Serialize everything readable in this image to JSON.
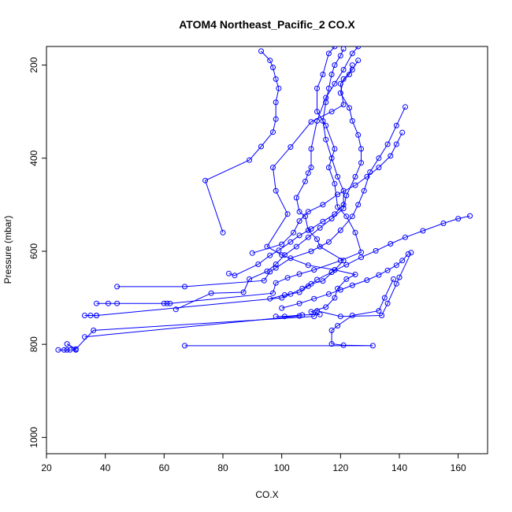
{
  "chart_data": {
    "type": "scatter",
    "title": "ATOM4 Northeast_Pacific_2 CO.X",
    "xlabel": "CO.X",
    "ylabel": "Pressure (mbar)",
    "xlim": [
      20,
      170
    ],
    "ylim": [
      160,
      1035
    ],
    "y_reversed": true,
    "x_ticks": [
      20,
      40,
      60,
      80,
      100,
      120,
      140,
      160
    ],
    "y_ticks": [
      200,
      400,
      600,
      800,
      1000
    ],
    "colors": {
      "series": "#0000ff",
      "axes": "#000000",
      "background": "#ffffff"
    },
    "legend": "none",
    "grid": false,
    "series": [
      {
        "style": "line+points",
        "points": [
          [
            24,
            812
          ],
          [
            26,
            812
          ],
          [
            27,
            812
          ],
          [
            28,
            812
          ],
          [
            30,
            812
          ],
          [
            27,
            799
          ],
          [
            30,
            810
          ],
          [
            36,
            770
          ],
          [
            111,
            740
          ],
          [
            112,
            728
          ],
          [
            120,
            740
          ],
          [
            134,
            738
          ],
          [
            136,
            712
          ],
          [
            139,
            670
          ],
          [
            140,
            656
          ],
          [
            144,
            603
          ]
        ]
      },
      {
        "style": "line+points",
        "points": [
          [
            67,
            803
          ],
          [
            131,
            803
          ],
          [
            121,
            802
          ],
          [
            117,
            799
          ],
          [
            117,
            770
          ],
          [
            119,
            760
          ],
          [
            124,
            738
          ],
          [
            133,
            728
          ],
          [
            135,
            700
          ],
          [
            138,
            660
          ]
        ]
      },
      {
        "style": "line+points",
        "points": [
          [
            33,
            784
          ],
          [
            106,
            739
          ],
          [
            98,
            740
          ],
          [
            101,
            740
          ],
          [
            107,
            737
          ],
          [
            113,
            736
          ],
          [
            110,
            730
          ],
          [
            115,
            720
          ],
          [
            118,
            700
          ],
          [
            119,
            680
          ],
          [
            122,
            660
          ],
          [
            125,
            650
          ],
          [
            118,
            640
          ],
          [
            109,
            630
          ],
          [
            100,
            608
          ],
          [
            95,
            590
          ],
          [
            102,
            520
          ],
          [
            98,
            470
          ],
          [
            97,
            420
          ],
          [
            103,
            376
          ],
          [
            110,
            322
          ],
          [
            117,
            300
          ],
          [
            121,
            285
          ],
          [
            120,
            240
          ],
          [
            123,
            220
          ],
          [
            124,
            200
          ]
        ]
      },
      {
        "style": "line+points",
        "points": [
          [
            33,
            738
          ],
          [
            35,
            738
          ],
          [
            37,
            738
          ],
          [
            37,
            738
          ],
          [
            100,
            700
          ],
          [
            103,
            692
          ],
          [
            107,
            680
          ],
          [
            110,
            670
          ],
          [
            114,
            664
          ],
          [
            118,
            640
          ],
          [
            121,
            620
          ],
          [
            113,
            590
          ],
          [
            112,
            574
          ],
          [
            109,
            555
          ],
          [
            108,
            525
          ],
          [
            106,
            515
          ],
          [
            105,
            485
          ],
          [
            108,
            450
          ],
          [
            109,
            432
          ],
          [
            110,
            420
          ],
          [
            110,
            380
          ],
          [
            112,
            320
          ],
          [
            115,
            270
          ],
          [
            118,
            240
          ],
          [
            121,
            210
          ],
          [
            124,
            175
          ],
          [
            126,
            160
          ]
        ]
      },
      {
        "style": "line+points",
        "points": [
          [
            37,
            712
          ],
          [
            41,
            712
          ],
          [
            44,
            712
          ],
          [
            60,
            712
          ],
          [
            61,
            712
          ],
          [
            62,
            712
          ],
          [
            97,
            690
          ],
          [
            98,
            668
          ],
          [
            102,
            657
          ],
          [
            106,
            649
          ],
          [
            111,
            640
          ],
          [
            120,
            620
          ],
          [
            127,
            602
          ],
          [
            125,
            560
          ],
          [
            122,
            525
          ],
          [
            119,
            505
          ],
          [
            118,
            455
          ],
          [
            116,
            420
          ],
          [
            118,
            380
          ],
          [
            115,
            330
          ],
          [
            112,
            300
          ],
          [
            112,
            250
          ],
          [
            114,
            220
          ],
          [
            116,
            175
          ],
          [
            118,
            160
          ]
        ]
      },
      {
        "style": "line+points",
        "points": [
          [
            44,
            676
          ],
          [
            67,
            676
          ],
          [
            94,
            663
          ],
          [
            96,
            644
          ],
          [
            98,
            636
          ],
          [
            103,
            615
          ],
          [
            110,
            600
          ],
          [
            116,
            580
          ],
          [
            120,
            555
          ],
          [
            124,
            525
          ],
          [
            126,
            500
          ],
          [
            128,
            470
          ],
          [
            130,
            430
          ],
          [
            133,
            400
          ],
          [
            136,
            370
          ],
          [
            139,
            330
          ],
          [
            142,
            290
          ]
        ]
      },
      {
        "style": "line+points",
        "points": [
          [
            64,
            725
          ],
          [
            76,
            690
          ],
          [
            87,
            688
          ],
          [
            89,
            660
          ],
          [
            95,
            643
          ],
          [
            98,
            628
          ],
          [
            101,
            608
          ],
          [
            105,
            590
          ],
          [
            109,
            570
          ],
          [
            113,
            550
          ],
          [
            117,
            530
          ],
          [
            121,
            508
          ],
          [
            122,
            480
          ],
          [
            125,
            440
          ],
          [
            127,
            410
          ],
          [
            127,
            380
          ],
          [
            126,
            350
          ],
          [
            124,
            320
          ],
          [
            123,
            292
          ],
          [
            120,
            260
          ],
          [
            121,
            230
          ],
          [
            124,
            210
          ],
          [
            126,
            190
          ]
        ]
      },
      {
        "style": "line+points",
        "points": [
          [
            82,
            648
          ],
          [
            84,
            652
          ],
          [
            92,
            628
          ],
          [
            96,
            609
          ],
          [
            99,
            598
          ],
          [
            103,
            580
          ],
          [
            106,
            566
          ],
          [
            110,
            552
          ],
          [
            114,
            536
          ],
          [
            118,
            520
          ],
          [
            121,
            500
          ],
          [
            121,
            470
          ],
          [
            119,
            440
          ],
          [
            117,
            400
          ],
          [
            115,
            360
          ],
          [
            114,
            320
          ],
          [
            115,
            280
          ],
          [
            116,
            250
          ],
          [
            117,
            220
          ],
          [
            118,
            200
          ],
          [
            120,
            180
          ],
          [
            121,
            165
          ]
        ]
      },
      {
        "style": "line+points",
        "points": [
          [
            80,
            560
          ],
          [
            74,
            448
          ],
          [
            89,
            404
          ],
          [
            93,
            375
          ],
          [
            97,
            344
          ],
          [
            98,
            316
          ],
          [
            98,
            280
          ],
          [
            99,
            250
          ],
          [
            98,
            230
          ],
          [
            97,
            205
          ],
          [
            96,
            190
          ],
          [
            93,
            170
          ]
        ]
      },
      {
        "style": "line+points",
        "points": [
          [
            90,
            604
          ],
          [
            100,
            585
          ],
          [
            104,
            560
          ],
          [
            106,
            535
          ],
          [
            109,
            515
          ],
          [
            114,
            500
          ],
          [
            119,
            478
          ],
          [
            125,
            458
          ],
          [
            129,
            440
          ],
          [
            133,
            420
          ],
          [
            137,
            395
          ],
          [
            139,
            370
          ],
          [
            141,
            345
          ]
        ]
      },
      {
        "style": "line+points",
        "points": [
          [
            96,
            702
          ],
          [
            101,
            694
          ],
          [
            106,
            688
          ],
          [
            109,
            675
          ],
          [
            112,
            661
          ],
          [
            117,
            645
          ],
          [
            122,
            629
          ],
          [
            127,
            613
          ],
          [
            132,
            599
          ],
          [
            137,
            584
          ],
          [
            142,
            570
          ],
          [
            148,
            556
          ],
          [
            155,
            540
          ],
          [
            160,
            530
          ],
          [
            164,
            524
          ]
        ]
      },
      {
        "style": "line+points",
        "points": [
          [
            100,
            722
          ],
          [
            106,
            712
          ],
          [
            111,
            702
          ],
          [
            116,
            692
          ],
          [
            120,
            683
          ],
          [
            124,
            673
          ],
          [
            129,
            662
          ],
          [
            133,
            651
          ],
          [
            136,
            641
          ],
          [
            139,
            630
          ],
          [
            141,
            620
          ],
          [
            143,
            606
          ]
        ]
      }
    ]
  }
}
